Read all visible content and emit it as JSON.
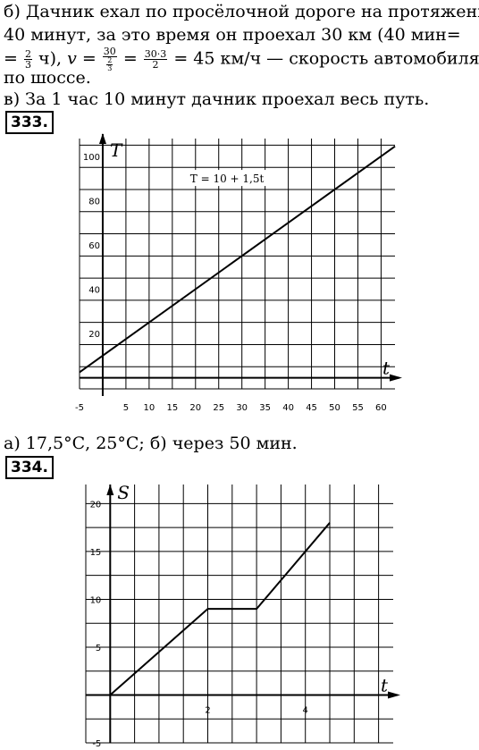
{
  "text": {
    "line_b1": "б) Дачник ехал по просёлочной дороге на протяжении",
    "line_b2": "40 минут, за это время он проехал 30 км (40 мин=",
    "line_b3_eq": "=",
    "line_b3_f1_num": "2",
    "line_b3_f1_den": "3",
    "line_b3_mid": " ч), ",
    "line_b3_v": "v",
    "line_b3_eq2": " = ",
    "line_b3_f2_num": "30",
    "line_b3_f2_den_num": "2",
    "line_b3_f2_den_den": "3",
    "line_b3_eq3": " = ",
    "line_b3_f3_num": "30·3",
    "line_b3_f3_den": "2",
    "line_b3_end": " = 45 км/ч — скорость автомобиля",
    "line_b4": "по шоссе.",
    "line_v": "в) За 1 час 10 минут дачник проехал весь путь.",
    "line_a": "а) 17,5°С, 25°С; б) через 50 мин."
  },
  "badges": {
    "first": "333.",
    "second": "334."
  },
  "chart_data": [
    {
      "type": "line",
      "title": "",
      "xlabel": "t",
      "ylabel": "T",
      "annotation": "T = 10 + 1,5t",
      "xlim": [
        -5,
        63
      ],
      "ylim": [
        -5,
        108
      ],
      "grid": true,
      "x_ticks": [
        "-5",
        "5",
        "10",
        "15",
        "20",
        "25",
        "30",
        "35",
        "40",
        "45",
        "50",
        "55",
        "60"
      ],
      "y_ticks": [
        "20",
        "40",
        "60",
        "80",
        "100"
      ],
      "series": [
        {
          "x": [
            -5,
            63
          ],
          "y": [
            2.5,
            104.5
          ]
        }
      ]
    },
    {
      "type": "line",
      "title": "",
      "xlabel": "t",
      "ylabel": "S",
      "xlim": [
        -0.5,
        5.8
      ],
      "ylim": [
        -5,
        22
      ],
      "grid": true,
      "x_ticks": [
        "2",
        "4"
      ],
      "y_ticks": [
        "20",
        "15",
        "10",
        "5",
        "-5"
      ],
      "series": [
        {
          "x": [
            0,
            2,
            3,
            4.5
          ],
          "y": [
            0,
            9,
            9,
            18
          ]
        }
      ]
    }
  ]
}
